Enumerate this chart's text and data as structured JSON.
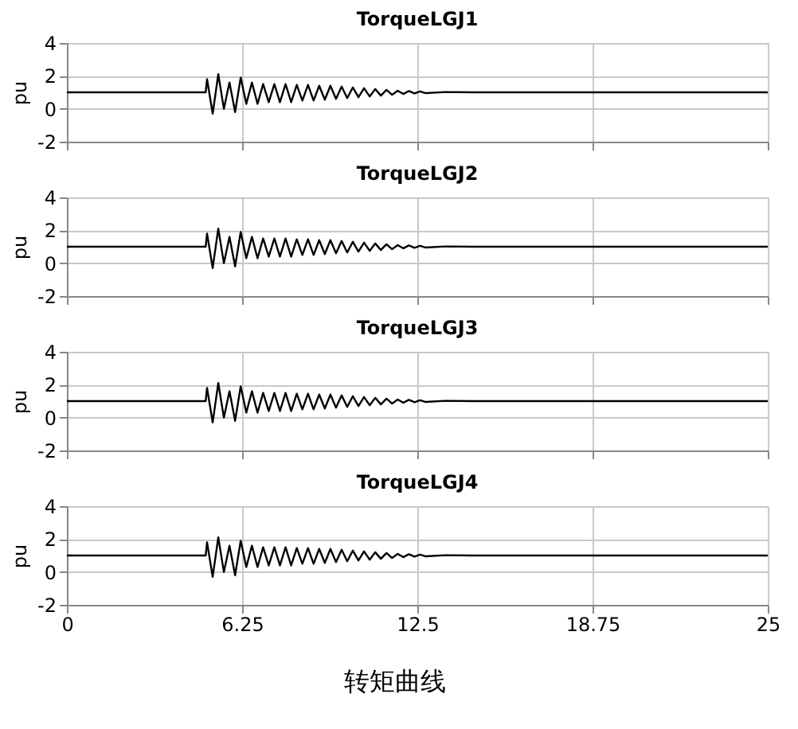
{
  "chart_data": [
    {
      "type": "line",
      "title": "TorqueLGJ1",
      "ylabel": "pu",
      "xlim": [
        0,
        25
      ],
      "xticks": [
        0,
        6.25,
        12.5,
        18.75,
        25
      ],
      "ylim": [
        -2,
        4
      ],
      "yticks": [
        -2,
        0,
        2,
        4
      ],
      "grid": true,
      "tick_labels": "y",
      "x": [
        0,
        4.95,
        5.0,
        5.2,
        5.4,
        5.6,
        5.8,
        6.0,
        6.2,
        6.4,
        6.6,
        6.8,
        7.0,
        7.2,
        7.4,
        7.6,
        7.8,
        8.0,
        8.2,
        8.4,
        8.6,
        8.8,
        9.0,
        9.2,
        9.4,
        9.6,
        9.8,
        10.0,
        10.2,
        10.4,
        10.6,
        10.8,
        11.0,
        11.2,
        11.4,
        11.6,
        11.8,
        12.0,
        12.2,
        12.4,
        12.6,
        12.8,
        13.5,
        14.5,
        25
      ],
      "series": [
        {
          "color": "#000000",
          "values": [
            1,
            1,
            1.8,
            -0.3,
            2.1,
            0.0,
            1.6,
            -0.2,
            1.9,
            0.3,
            1.6,
            0.3,
            1.5,
            0.4,
            1.5,
            0.4,
            1.5,
            0.4,
            1.45,
            0.5,
            1.45,
            0.5,
            1.4,
            0.55,
            1.4,
            0.6,
            1.35,
            0.65,
            1.3,
            0.7,
            1.25,
            0.75,
            1.2,
            0.8,
            1.15,
            0.85,
            1.1,
            0.9,
            1.08,
            0.93,
            1.05,
            0.95,
            1.02,
            1,
            1
          ]
        }
      ]
    },
    {
      "type": "line",
      "title": "TorqueLGJ2",
      "ylabel": "pu",
      "xlim": [
        0,
        25
      ],
      "xticks": [
        0,
        6.25,
        12.5,
        18.75,
        25
      ],
      "ylim": [
        -2,
        4
      ],
      "yticks": [
        -2,
        0,
        2,
        4
      ],
      "grid": true,
      "tick_labels": "y",
      "x": [
        0,
        4.95,
        5.0,
        5.2,
        5.4,
        5.6,
        5.8,
        6.0,
        6.2,
        6.4,
        6.6,
        6.8,
        7.0,
        7.2,
        7.4,
        7.6,
        7.8,
        8.0,
        8.2,
        8.4,
        8.6,
        8.8,
        9.0,
        9.2,
        9.4,
        9.6,
        9.8,
        10.0,
        10.2,
        10.4,
        10.6,
        10.8,
        11.0,
        11.2,
        11.4,
        11.6,
        11.8,
        12.0,
        12.2,
        12.4,
        12.6,
        12.8,
        13.5,
        14.5,
        25
      ],
      "series": [
        {
          "color": "#000000",
          "values": [
            1,
            1,
            1.8,
            -0.3,
            2.1,
            0.0,
            1.6,
            -0.2,
            1.9,
            0.3,
            1.6,
            0.3,
            1.5,
            0.4,
            1.5,
            0.4,
            1.5,
            0.4,
            1.45,
            0.5,
            1.45,
            0.5,
            1.4,
            0.55,
            1.4,
            0.6,
            1.35,
            0.65,
            1.3,
            0.7,
            1.25,
            0.75,
            1.2,
            0.8,
            1.15,
            0.85,
            1.1,
            0.9,
            1.08,
            0.93,
            1.05,
            0.95,
            1.02,
            1,
            1
          ]
        }
      ]
    },
    {
      "type": "line",
      "title": "TorqueLGJ3",
      "ylabel": "pu",
      "xlim": [
        0,
        25
      ],
      "xticks": [
        0,
        6.25,
        12.5,
        18.75,
        25
      ],
      "ylim": [
        -2,
        4
      ],
      "yticks": [
        -2,
        0,
        2,
        4
      ],
      "grid": true,
      "tick_labels": "y",
      "x": [
        0,
        4.95,
        5.0,
        5.2,
        5.4,
        5.6,
        5.8,
        6.0,
        6.2,
        6.4,
        6.6,
        6.8,
        7.0,
        7.2,
        7.4,
        7.6,
        7.8,
        8.0,
        8.2,
        8.4,
        8.6,
        8.8,
        9.0,
        9.2,
        9.4,
        9.6,
        9.8,
        10.0,
        10.2,
        10.4,
        10.6,
        10.8,
        11.0,
        11.2,
        11.4,
        11.6,
        11.8,
        12.0,
        12.2,
        12.4,
        12.6,
        12.8,
        13.5,
        14.5,
        25
      ],
      "series": [
        {
          "color": "#000000",
          "values": [
            1,
            1,
            1.8,
            -0.3,
            2.1,
            0.0,
            1.6,
            -0.2,
            1.9,
            0.3,
            1.6,
            0.3,
            1.5,
            0.4,
            1.5,
            0.4,
            1.5,
            0.4,
            1.45,
            0.5,
            1.45,
            0.5,
            1.4,
            0.55,
            1.4,
            0.6,
            1.35,
            0.65,
            1.3,
            0.7,
            1.25,
            0.75,
            1.2,
            0.8,
            1.15,
            0.85,
            1.1,
            0.9,
            1.08,
            0.93,
            1.05,
            0.95,
            1.02,
            1,
            1
          ]
        }
      ]
    },
    {
      "type": "line",
      "title": "TorqueLGJ4",
      "ylabel": "pu",
      "xlim": [
        0,
        25
      ],
      "xticks": [
        0,
        6.25,
        12.5,
        18.75,
        25
      ],
      "ylim": [
        -2,
        4
      ],
      "yticks": [
        -2,
        0,
        2,
        4
      ],
      "grid": true,
      "annotations": [
        "转矩曲线"
      ],
      "x": [
        0,
        4.95,
        5.0,
        5.2,
        5.4,
        5.6,
        5.8,
        6.0,
        6.2,
        6.4,
        6.6,
        6.8,
        7.0,
        7.2,
        7.4,
        7.6,
        7.8,
        8.0,
        8.2,
        8.4,
        8.6,
        8.8,
        9.0,
        9.2,
        9.4,
        9.6,
        9.8,
        10.0,
        10.2,
        10.4,
        10.6,
        10.8,
        11.0,
        11.2,
        11.4,
        11.6,
        11.8,
        12.0,
        12.2,
        12.4,
        12.6,
        12.8,
        13.5,
        14.5,
        25
      ],
      "series": [
        {
          "color": "#000000",
          "values": [
            1,
            1,
            1.8,
            -0.3,
            2.1,
            0.0,
            1.6,
            -0.2,
            1.9,
            0.3,
            1.6,
            0.3,
            1.5,
            0.4,
            1.5,
            0.4,
            1.5,
            0.4,
            1.45,
            0.5,
            1.45,
            0.5,
            1.4,
            0.55,
            1.4,
            0.6,
            1.35,
            0.65,
            1.3,
            0.7,
            1.25,
            0.75,
            1.2,
            0.8,
            1.15,
            0.85,
            1.1,
            0.9,
            1.08,
            0.93,
            1.05,
            0.95,
            1.02,
            1,
            1
          ]
        }
      ]
    }
  ]
}
